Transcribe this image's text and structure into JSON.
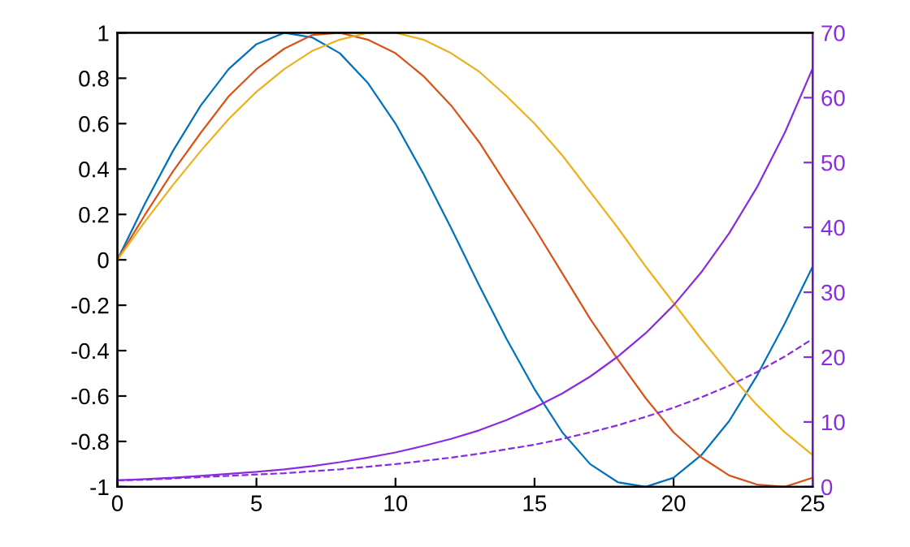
{
  "chart_data": {
    "type": "line",
    "x": [
      0,
      1,
      2,
      3,
      4,
      5,
      6,
      7,
      8,
      9,
      10,
      11,
      12,
      13,
      14,
      15,
      16,
      17,
      18,
      19,
      20,
      21,
      22,
      23,
      24,
      25
    ],
    "series": [
      {
        "color": "#0072bd",
        "line_style": "solid",
        "values": [
          0,
          0.25,
          0.48,
          0.68,
          0.84,
          0.95,
          1.0,
          0.98,
          0.91,
          0.78,
          0.6,
          0.38,
          0.14,
          -0.11,
          -0.35,
          -0.57,
          -0.76,
          -0.9,
          -0.98,
          -1.0,
          -0.96,
          -0.86,
          -0.71,
          -0.51,
          -0.28,
          -0.03
        ]
      },
      {
        "color": "#d95319",
        "line_style": "solid",
        "values": [
          0,
          0.2,
          0.39,
          0.56,
          0.72,
          0.84,
          0.93,
          0.99,
          1.0,
          0.97,
          0.91,
          0.81,
          0.68,
          0.52,
          0.33,
          0.14,
          -0.06,
          -0.26,
          -0.44,
          -0.61,
          -0.76,
          -0.87,
          -0.95,
          -0.99,
          -1.0,
          -0.96
        ]
      },
      {
        "color": "#edb120",
        "line_style": "solid",
        "values": [
          0,
          0.17,
          0.33,
          0.48,
          0.62,
          0.74,
          0.84,
          0.92,
          0.97,
          1.0,
          1.0,
          0.97,
          0.91,
          0.83,
          0.72,
          0.6,
          0.46,
          0.3,
          0.14,
          -0.03,
          -0.19,
          -0.35,
          -0.5,
          -0.64,
          -0.76,
          -0.86
        ]
      },
      {
        "color": "#8a2be2",
        "line_style": "solid",
        "axis": "y2",
        "values": [
          1,
          1.2,
          1.4,
          1.7,
          2,
          2.3,
          2.7,
          3.2,
          3.8,
          4.5,
          5.3,
          6.3,
          7.4,
          8.7,
          10.3,
          12.2,
          14.4,
          17,
          20.1,
          23.7,
          28,
          33.1,
          39.1,
          46.2,
          54.6,
          64.5
        ]
      },
      {
        "color": "#8a2be2",
        "line_style": "dashed",
        "axis": "y2",
        "values": [
          1,
          1.1,
          1.3,
          1.5,
          1.7,
          1.9,
          2.1,
          2.4,
          2.7,
          3.1,
          3.5,
          4,
          4.5,
          5.1,
          5.8,
          6.5,
          7.4,
          8.4,
          9.5,
          10.8,
          12.2,
          13.8,
          15.6,
          17.7,
          20.1,
          22.8
        ]
      }
    ],
    "xlim": [
      0,
      25
    ],
    "xticks": [
      0,
      5,
      10,
      15,
      20,
      25
    ],
    "ylim": [
      -1,
      1
    ],
    "yticks": [
      -1,
      -0.8,
      -0.6,
      -0.4,
      -0.2,
      0,
      0.2,
      0.4,
      0.6,
      0.8,
      1
    ],
    "y2lim": [
      0,
      70
    ],
    "y2ticks": [
      0,
      10,
      20,
      30,
      40,
      50,
      60,
      70
    ],
    "marker": "none",
    "grid": false,
    "legend": false
  }
}
